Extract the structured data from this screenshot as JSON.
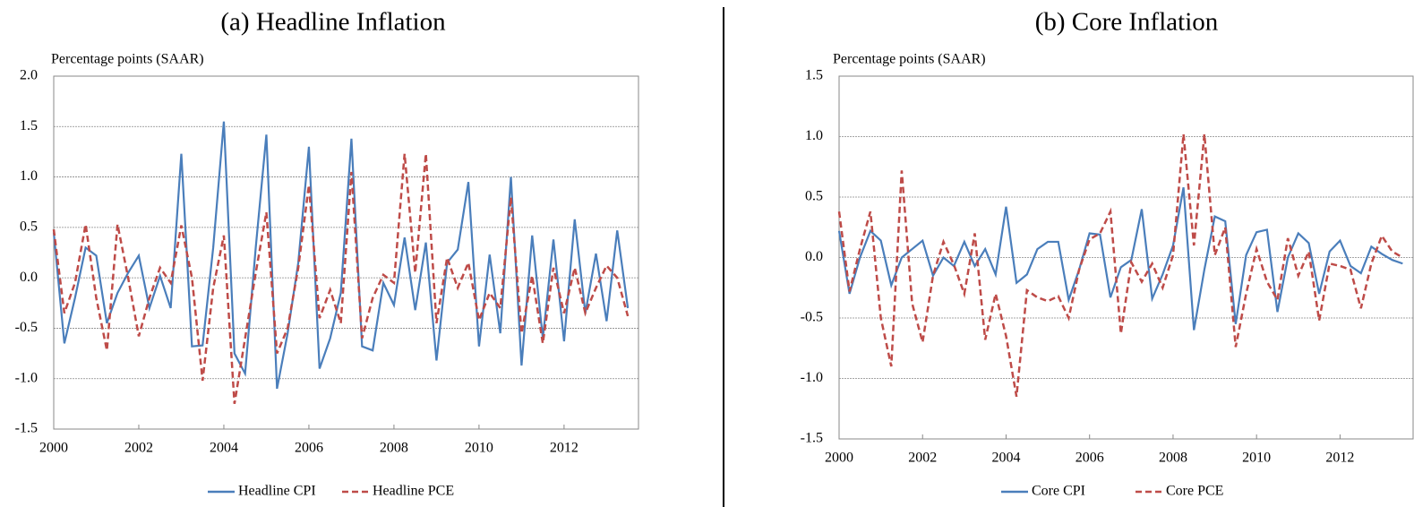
{
  "chart_data": [
    {
      "type": "line",
      "title": "(a) Headline Inflation",
      "ylabel": "Percentage points (SAAR)",
      "x": [
        2000,
        2000.25,
        2000.5,
        2000.75,
        2001,
        2001.25,
        2001.5,
        2001.75,
        2002,
        2002.25,
        2002.5,
        2002.75,
        2003,
        2003.25,
        2003.5,
        2003.75,
        2004,
        2004.25,
        2004.5,
        2004.75,
        2005,
        2005.25,
        2005.5,
        2005.75,
        2006,
        2006.25,
        2006.5,
        2006.75,
        2007,
        2007.25,
        2007.5,
        2007.75,
        2008,
        2008.25,
        2008.5,
        2008.75,
        2009,
        2009.25,
        2009.5,
        2009.75,
        2010,
        2010.25,
        2010.5,
        2010.75,
        2011,
        2011.25,
        2011.5,
        2011.75,
        2012,
        2012.25,
        2012.5,
        2012.75,
        2013,
        2013.25,
        2013.5
      ],
      "series": [
        {
          "name": "Headline CPI",
          "color": "#4a7ebb",
          "line_style": "solid",
          "values": [
            0.45,
            -0.65,
            -0.2,
            0.3,
            0.22,
            -0.45,
            -0.15,
            0.05,
            0.22,
            -0.3,
            0.02,
            -0.3,
            1.23,
            -0.68,
            -0.67,
            0.3,
            1.55,
            -0.75,
            -0.95,
            0.3,
            1.42,
            -1.1,
            -0.55,
            0.15,
            1.3,
            -0.9,
            -0.6,
            -0.15,
            1.38,
            -0.68,
            -0.72,
            -0.05,
            -0.27,
            0.4,
            -0.32,
            0.35,
            -0.82,
            0.15,
            0.28,
            0.95,
            -0.68,
            0.23,
            -0.55,
            1.0,
            -0.87,
            0.42,
            -0.6,
            0.38,
            -0.63,
            0.58,
            -0.35,
            0.24,
            -0.43,
            0.47,
            -0.3
          ]
        },
        {
          "name": "Headline PCE",
          "color": "#be4b48",
          "line_style": "dashed",
          "values": [
            0.48,
            -0.35,
            -0.05,
            0.53,
            -0.2,
            -0.72,
            0.53,
            0.0,
            -0.58,
            -0.2,
            0.1,
            -0.05,
            0.52,
            0.0,
            -1.02,
            -0.1,
            0.42,
            -1.25,
            -0.6,
            0.05,
            0.65,
            -0.75,
            -0.5,
            0.1,
            0.92,
            -0.4,
            -0.12,
            -0.45,
            1.05,
            -0.6,
            -0.2,
            0.03,
            -0.05,
            1.23,
            0.05,
            1.23,
            -0.45,
            0.2,
            -0.1,
            0.15,
            -0.42,
            -0.15,
            -0.3,
            0.8,
            -0.55,
            0.02,
            -0.65,
            0.1,
            -0.35,
            0.1,
            -0.35,
            -0.1,
            0.12,
            0.0,
            -0.38
          ]
        }
      ],
      "xlim": [
        2000,
        2013.75
      ],
      "xticks": [
        2000,
        2002,
        2004,
        2006,
        2008,
        2010,
        2012
      ],
      "ylim": [
        -1.5,
        2
      ],
      "yticks": [
        -1.5,
        {
          "value": -1,
          "label": "-1.0"
        },
        -0.5,
        {
          "value": 0,
          "label": "0.0"
        },
        0.5,
        {
          "value": 1,
          "label": "1.0"
        },
        1.5,
        {
          "value": 2,
          "label": "2.0"
        }
      ],
      "grid": true,
      "legend": "bottom"
    },
    {
      "type": "line",
      "title": "(b) Core Inflation",
      "ylabel": "Percentage points (SAAR)",
      "x": [
        2000,
        2000.25,
        2000.5,
        2000.75,
        2001,
        2001.25,
        2001.5,
        2001.75,
        2002,
        2002.25,
        2002.5,
        2002.75,
        2003,
        2003.25,
        2003.5,
        2003.75,
        2004,
        2004.25,
        2004.5,
        2004.75,
        2005,
        2005.25,
        2005.5,
        2005.75,
        2006,
        2006.25,
        2006.5,
        2006.75,
        2007,
        2007.25,
        2007.5,
        2007.75,
        2008,
        2008.25,
        2008.5,
        2008.75,
        2009,
        2009.25,
        2009.5,
        2009.75,
        2010,
        2010.25,
        2010.5,
        2010.75,
        2011,
        2011.25,
        2011.5,
        2011.75,
        2012,
        2012.25,
        2012.5,
        2012.75,
        2013,
        2013.25,
        2013.5
      ],
      "series": [
        {
          "name": "Core CPI",
          "color": "#4a7ebb",
          "line_style": "solid",
          "values": [
            0.22,
            -0.3,
            0.0,
            0.22,
            0.14,
            -0.23,
            0.0,
            0.07,
            0.14,
            -0.15,
            0.0,
            -0.07,
            0.13,
            -0.07,
            0.07,
            -0.14,
            0.42,
            -0.21,
            -0.14,
            0.07,
            0.13,
            0.13,
            -0.35,
            -0.1,
            0.2,
            0.19,
            -0.33,
            -0.08,
            -0.02,
            0.4,
            -0.34,
            -0.14,
            0.1,
            0.58,
            -0.6,
            -0.1,
            0.34,
            0.3,
            -0.55,
            0.02,
            0.21,
            0.23,
            -0.45,
            0.0,
            0.2,
            0.12,
            -0.3,
            0.05,
            0.14,
            -0.07,
            -0.13,
            0.09,
            0.03,
            -0.02,
            -0.05
          ]
        },
        {
          "name": "Core PCE",
          "color": "#be4b48",
          "line_style": "dashed",
          "values": [
            0.38,
            -0.28,
            0.07,
            0.38,
            -0.5,
            -0.9,
            0.72,
            -0.38,
            -0.7,
            -0.15,
            0.13,
            -0.06,
            -0.3,
            0.2,
            -0.68,
            -0.3,
            -0.65,
            -1.15,
            -0.27,
            -0.33,
            -0.36,
            -0.32,
            -0.5,
            -0.1,
            0.15,
            0.2,
            0.38,
            -0.63,
            -0.04,
            -0.2,
            -0.05,
            -0.25,
            0.02,
            1.02,
            0.1,
            1.02,
            0.02,
            0.25,
            -0.74,
            -0.3,
            0.07,
            -0.2,
            -0.35,
            0.16,
            -0.15,
            0.05,
            -0.52,
            -0.05,
            -0.07,
            -0.1,
            -0.42,
            -0.05,
            0.18,
            0.05,
            0.0
          ]
        }
      ],
      "xlim": [
        2000,
        2013.75
      ],
      "xticks": [
        2000,
        2002,
        2004,
        2006,
        2008,
        2010,
        2012
      ],
      "ylim": [
        -1.5,
        1.5
      ],
      "yticks": [
        -1.5,
        {
          "value": -1,
          "label": "-1.0"
        },
        -0.5,
        {
          "value": 0,
          "label": "0.0"
        },
        0.5,
        {
          "value": 1,
          "label": "1.0"
        },
        1.5
      ],
      "grid": true,
      "legend": "bottom"
    }
  ]
}
